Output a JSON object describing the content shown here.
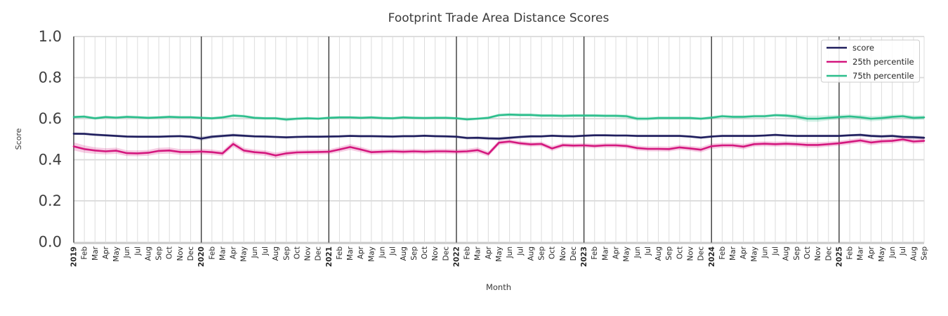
{
  "chart_data": {
    "type": "line",
    "title": "Footprint Trade Area Distance Scores",
    "xlabel": "Month",
    "ylabel": "Score",
    "ylim": [
      0.0,
      1.0
    ],
    "yticks": [
      {
        "label": "0.0",
        "value": 0.0
      },
      {
        "label": "0.2",
        "value": 0.2
      },
      {
        "label": "0.4",
        "value": 0.4
      },
      {
        "label": "0.6",
        "value": 0.6
      },
      {
        "label": "0.8",
        "value": 0.8
      },
      {
        "label": "1.0",
        "value": 1.0
      }
    ],
    "grid": true,
    "legend_position": "upper right",
    "x_tick_labels": [
      "2019",
      "Feb",
      "Mar",
      "Apr",
      "May",
      "Jun",
      "Jul",
      "Aug",
      "Sep",
      "Oct",
      "Nov",
      "Dec",
      "2020",
      "Feb",
      "Mar",
      "Apr",
      "May",
      "Jun",
      "Jul",
      "Aug",
      "Sep",
      "Oct",
      "Nov",
      "Dec",
      "2021",
      "Feb",
      "Mar",
      "Apr",
      "May",
      "Jun",
      "Jul",
      "Aug",
      "Sep",
      "Oct",
      "Nov",
      "Dec",
      "2022",
      "Feb",
      "Mar",
      "Apr",
      "May",
      "Jun",
      "Jul",
      "Aug",
      "Sep",
      "Oct",
      "Nov",
      "Dec",
      "2023",
      "Feb",
      "Mar",
      "Apr",
      "May",
      "Jun",
      "Jul",
      "Aug",
      "Sep",
      "Oct",
      "Nov",
      "Dec",
      "2024",
      "Feb",
      "Mar",
      "Apr",
      "May",
      "Jun",
      "Jul",
      "Aug",
      "Sep",
      "Oct",
      "Nov",
      "Dec",
      "2025",
      "Feb",
      "Mar",
      "Apr",
      "May",
      "Jun",
      "Jul",
      "Aug",
      "Sep"
    ],
    "year_line_color": "#3a3a3a",
    "grid_color": "#dcdcdc",
    "hgrid_color": "#d9d9d9",
    "spine_color": "#c9c9c9",
    "series": [
      {
        "name": "score",
        "color": "#201f5e",
        "values": [
          0.527,
          0.526,
          0.522,
          0.519,
          0.516,
          0.513,
          0.512,
          0.512,
          0.512,
          0.514,
          0.515,
          0.512,
          0.503,
          0.512,
          0.516,
          0.52,
          0.517,
          0.514,
          0.513,
          0.511,
          0.509,
          0.511,
          0.512,
          0.512,
          0.513,
          0.514,
          0.516,
          0.515,
          0.515,
          0.514,
          0.513,
          0.515,
          0.515,
          0.517,
          0.515,
          0.514,
          0.512,
          0.506,
          0.507,
          0.504,
          0.503,
          0.507,
          0.511,
          0.514,
          0.514,
          0.517,
          0.515,
          0.514,
          0.517,
          0.519,
          0.519,
          0.518,
          0.518,
          0.516,
          0.516,
          0.516,
          0.516,
          0.516,
          0.513,
          0.508,
          0.513,
          0.516,
          0.516,
          0.516,
          0.516,
          0.518,
          0.521,
          0.518,
          0.516,
          0.516,
          0.516,
          0.516,
          0.516,
          0.519,
          0.521,
          0.516,
          0.514,
          0.516,
          0.511,
          0.51,
          0.507
        ],
        "band_halfwidth": [
          0.006,
          0.006,
          0.006,
          0.006,
          0.006,
          0.006,
          0.006,
          0.006,
          0.006,
          0.006,
          0.006,
          0.006,
          0.01,
          0.008,
          0.007,
          0.008,
          0.007,
          0.006,
          0.006,
          0.006,
          0.006,
          0.006,
          0.006,
          0.006,
          0.006,
          0.006,
          0.006,
          0.006,
          0.006,
          0.006,
          0.006,
          0.006,
          0.006,
          0.006,
          0.006,
          0.006,
          0.006,
          0.007,
          0.007,
          0.008,
          0.008,
          0.007,
          0.007,
          0.007,
          0.006,
          0.006,
          0.006,
          0.006,
          0.006,
          0.006,
          0.006,
          0.006,
          0.006,
          0.006,
          0.006,
          0.006,
          0.006,
          0.006,
          0.006,
          0.006,
          0.006,
          0.006,
          0.006,
          0.006,
          0.006,
          0.006,
          0.006,
          0.006,
          0.006,
          0.006,
          0.006,
          0.006,
          0.006,
          0.006,
          0.007,
          0.007,
          0.007,
          0.007,
          0.007,
          0.008,
          0.008
        ]
      },
      {
        "name": "25th percentile",
        "color": "#d4177e",
        "values": [
          0.465,
          0.452,
          0.445,
          0.441,
          0.444,
          0.432,
          0.431,
          0.434,
          0.443,
          0.445,
          0.438,
          0.438,
          0.44,
          0.437,
          0.431,
          0.477,
          0.445,
          0.437,
          0.433,
          0.421,
          0.431,
          0.436,
          0.437,
          0.438,
          0.439,
          0.45,
          0.462,
          0.45,
          0.437,
          0.439,
          0.441,
          0.439,
          0.441,
          0.439,
          0.441,
          0.441,
          0.439,
          0.441,
          0.447,
          0.428,
          0.483,
          0.489,
          0.48,
          0.475,
          0.477,
          0.455,
          0.471,
          0.469,
          0.47,
          0.467,
          0.47,
          0.47,
          0.467,
          0.457,
          0.453,
          0.453,
          0.452,
          0.46,
          0.455,
          0.449,
          0.466,
          0.47,
          0.47,
          0.464,
          0.476,
          0.478,
          0.476,
          0.478,
          0.476,
          0.472,
          0.472,
          0.476,
          0.48,
          0.487,
          0.494,
          0.484,
          0.49,
          0.492,
          0.499,
          0.489,
          0.492
        ],
        "band_halfwidth": [
          0.02,
          0.018,
          0.016,
          0.015,
          0.015,
          0.014,
          0.014,
          0.014,
          0.015,
          0.015,
          0.014,
          0.014,
          0.014,
          0.013,
          0.013,
          0.014,
          0.013,
          0.013,
          0.013,
          0.014,
          0.013,
          0.012,
          0.012,
          0.012,
          0.012,
          0.013,
          0.014,
          0.013,
          0.012,
          0.012,
          0.012,
          0.012,
          0.012,
          0.012,
          0.012,
          0.012,
          0.012,
          0.012,
          0.013,
          0.012,
          0.012,
          0.011,
          0.011,
          0.011,
          0.011,
          0.012,
          0.011,
          0.011,
          0.011,
          0.011,
          0.011,
          0.011,
          0.011,
          0.012,
          0.012,
          0.012,
          0.012,
          0.012,
          0.012,
          0.013,
          0.013,
          0.012,
          0.012,
          0.013,
          0.012,
          0.012,
          0.012,
          0.012,
          0.012,
          0.013,
          0.013,
          0.012,
          0.012,
          0.012,
          0.012,
          0.013,
          0.012,
          0.012,
          0.011,
          0.012,
          0.012
        ]
      },
      {
        "name": "75th percentile",
        "color": "#2cbe8c",
        "values": [
          0.608,
          0.61,
          0.602,
          0.608,
          0.605,
          0.609,
          0.607,
          0.604,
          0.606,
          0.609,
          0.607,
          0.607,
          0.604,
          0.602,
          0.606,
          0.615,
          0.612,
          0.604,
          0.602,
          0.602,
          0.596,
          0.6,
          0.602,
          0.6,
          0.604,
          0.606,
          0.606,
          0.604,
          0.606,
          0.603,
          0.602,
          0.606,
          0.604,
          0.603,
          0.604,
          0.604,
          0.602,
          0.597,
          0.6,
          0.604,
          0.617,
          0.62,
          0.618,
          0.618,
          0.615,
          0.615,
          0.614,
          0.615,
          0.615,
          0.615,
          0.614,
          0.614,
          0.612,
          0.6,
          0.6,
          0.603,
          0.603,
          0.603,
          0.603,
          0.6,
          0.605,
          0.612,
          0.609,
          0.609,
          0.612,
          0.612,
          0.617,
          0.615,
          0.61,
          0.6,
          0.6,
          0.604,
          0.608,
          0.611,
          0.607,
          0.6,
          0.603,
          0.609,
          0.612,
          0.604,
          0.606
        ],
        "band_halfwidth": [
          0.007,
          0.007,
          0.007,
          0.007,
          0.007,
          0.007,
          0.007,
          0.007,
          0.007,
          0.007,
          0.007,
          0.007,
          0.007,
          0.007,
          0.007,
          0.008,
          0.008,
          0.007,
          0.007,
          0.007,
          0.009,
          0.008,
          0.007,
          0.007,
          0.007,
          0.007,
          0.007,
          0.007,
          0.007,
          0.007,
          0.007,
          0.007,
          0.007,
          0.007,
          0.007,
          0.007,
          0.007,
          0.008,
          0.007,
          0.007,
          0.008,
          0.008,
          0.008,
          0.008,
          0.008,
          0.008,
          0.008,
          0.008,
          0.008,
          0.008,
          0.008,
          0.008,
          0.009,
          0.01,
          0.009,
          0.008,
          0.008,
          0.008,
          0.008,
          0.008,
          0.008,
          0.008,
          0.008,
          0.008,
          0.008,
          0.008,
          0.008,
          0.009,
          0.011,
          0.015,
          0.015,
          0.012,
          0.011,
          0.01,
          0.011,
          0.013,
          0.012,
          0.01,
          0.009,
          0.011,
          0.01
        ]
      }
    ]
  }
}
